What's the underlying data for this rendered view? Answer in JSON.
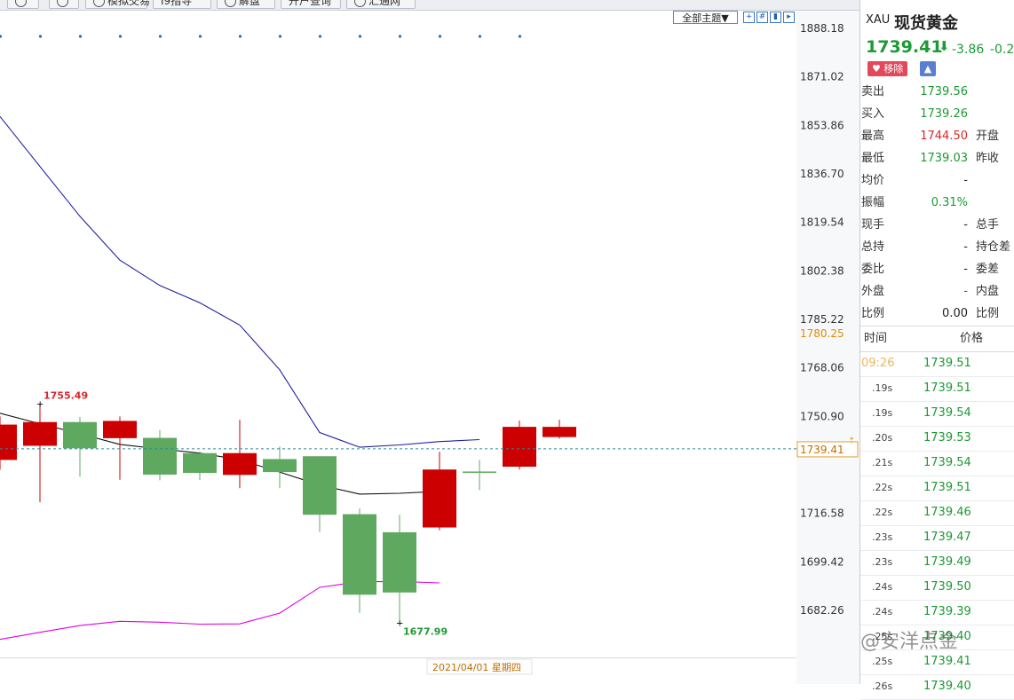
{
  "toolbar": {
    "buttons": [
      {
        "label": "",
        "icon": "search-icon"
      },
      {
        "label": "",
        "icon": "pen-icon"
      },
      {
        "label": "模拟交易",
        "icon": "dollar-icon"
      },
      {
        "label": "I9指导",
        "icon": ""
      },
      {
        "label": "解盘",
        "icon": "chat-icon"
      },
      {
        "label": "开户查询",
        "icon": ""
      },
      {
        "label": "汇通网",
        "icon": "logo-icon"
      }
    ]
  },
  "chart_header": {
    "theme_button": "全部主题▼"
  },
  "chart_data": {
    "type": "candlestick",
    "ylim": [
      1670,
      1895
    ],
    "y_ticks": [
      "1888.18",
      "1871.02",
      "1853.86",
      "1836.70",
      "1819.54",
      "1802.38",
      "1785.22",
      "1768.06",
      "1750.90",
      "1716.58",
      "1699.42",
      "1682.26"
    ],
    "highlight_ticks": [
      {
        "label": "1780.25",
        "value": 1780.25
      }
    ],
    "current_price": {
      "label": "1739.41",
      "value": 1739.41
    },
    "x_label": "2021/04/01 星期四",
    "annotations": [
      {
        "label": "1755.49",
        "candle": 1,
        "value": 1755.49,
        "color": "#d8262b"
      },
      {
        "label": "1677.99",
        "candle": 10,
        "value": 1677.99,
        "color": "#1c9a33"
      }
    ],
    "candles": [
      {
        "open": 1735.5,
        "close": 1748.0,
        "high": 1750.9,
        "low": 1732.0
      },
      {
        "open": 1740.5,
        "close": 1748.9,
        "high": 1755.5,
        "low": 1720.5
      },
      {
        "open": 1748.9,
        "close": 1739.6,
        "high": 1750.7,
        "low": 1729.6
      },
      {
        "open": 1743.2,
        "close": 1749.3,
        "high": 1750.9,
        "low": 1728.5
      },
      {
        "open": 1743.3,
        "close": 1730.3,
        "high": 1746.1,
        "low": 1728.3
      },
      {
        "open": 1737.9,
        "close": 1730.9,
        "high": 1738.5,
        "low": 1728.4
      },
      {
        "open": 1730.2,
        "close": 1737.9,
        "high": 1749.7,
        "low": 1725.5
      },
      {
        "open": 1735.8,
        "close": 1731.2,
        "high": 1740.2,
        "low": 1725.5
      },
      {
        "open": 1736.8,
        "close": 1716.1,
        "high": 1736.8,
        "low": 1710.0
      },
      {
        "open": 1716.3,
        "close": 1687.8,
        "high": 1718.3,
        "low": 1681.4
      },
      {
        "open": 1709.9,
        "close": 1688.6,
        "high": 1716.1,
        "low": 1678.0
      },
      {
        "open": 1711.6,
        "close": 1732.1,
        "high": 1738.4,
        "low": 1710.6
      },
      {
        "open": 1731.4,
        "close": 1731.4,
        "high": 1735.5,
        "low": 1724.8
      },
      {
        "open": 1733.1,
        "close": 1747.2,
        "high": 1749.4,
        "low": 1732.1
      },
      {
        "open": 1743.6,
        "close": 1747.2,
        "high": 1749.7,
        "low": 1743.0
      }
    ],
    "series": [
      {
        "color": "#1f1fa0",
        "values": [
          1857.0,
          1839.3,
          1821.7,
          1806.2,
          1797.2,
          1791.1,
          1783.2,
          1767.4,
          1745.2,
          1740.0,
          1740.8,
          1742.0,
          1742.7
        ]
      },
      {
        "color": "#111111",
        "values": [
          1752.0,
          1748.3,
          1744.8,
          1741.0,
          1739.4,
          1737.9,
          1735.6,
          1731.2,
          1726.6,
          1723.4,
          1723.7,
          1724.4
        ]
      },
      {
        "color": "#e000e0",
        "values": [
          1672.0,
          1674.5,
          1676.9,
          1678.4,
          1678.1,
          1677.4,
          1677.5,
          1681.3,
          1690.4,
          1692.4,
          1692.5,
          1692.0
        ]
      }
    ],
    "blue_dot_row": true
  },
  "quote": {
    "symbol": "XAU",
    "name": "现货黄金",
    "price": "1739.41",
    "arrow": "⬇",
    "change": "-3.86",
    "change_pct": "-0.2",
    "remove_label": "移除",
    "rows": [
      {
        "label": "卖出",
        "value": "1739.56",
        "color": "green",
        "label2": ""
      },
      {
        "label": "买入",
        "value": "1739.26",
        "color": "green",
        "label2": ""
      },
      {
        "label": "最高",
        "value": "1744.50",
        "color": "red",
        "label2": "开盘"
      },
      {
        "label": "最低",
        "value": "1739.03",
        "color": "green",
        "label2": "昨收"
      },
      {
        "label": "均价",
        "value": "-",
        "color": "plain",
        "label2": ""
      },
      {
        "label": "振幅",
        "value": "0.31%",
        "color": "green",
        "label2": ""
      },
      {
        "label": "现手",
        "value": "-",
        "color": "plain",
        "label2": "总手"
      },
      {
        "label": "总持",
        "value": "-",
        "color": "plain",
        "label2": "持仓差"
      },
      {
        "label": "委比",
        "value": "-",
        "color": "plain",
        "label2": "委差"
      },
      {
        "label": "外盘",
        "value": "-",
        "color": "red",
        "label2": "内盘"
      },
      {
        "label": "比例",
        "value": "0.00",
        "color": "plain",
        "label2": "比例"
      }
    ],
    "ticks_header": {
      "time": "时间",
      "price": "价格"
    },
    "ticks": [
      {
        "time": "09:26",
        "price": "1739.51"
      },
      {
        "time": ".19s",
        "price": "1739.51"
      },
      {
        "time": ".19s",
        "price": "1739.54"
      },
      {
        "time": ".20s",
        "price": "1739.53"
      },
      {
        "time": ".21s",
        "price": "1739.54"
      },
      {
        "time": ".22s",
        "price": "1739.51"
      },
      {
        "time": ".22s",
        "price": "1739.46"
      },
      {
        "time": ".23s",
        "price": "1739.47"
      },
      {
        "time": ".23s",
        "price": "1739.49"
      },
      {
        "time": ".24s",
        "price": "1739.50"
      },
      {
        "time": ".24s",
        "price": "1739.39"
      },
      {
        "time": ".25s",
        "price": "1739.40"
      },
      {
        "time": ".25s",
        "price": "1739.41"
      },
      {
        "time": ".26s",
        "price": "1739.40"
      }
    ]
  },
  "watermark": "@安洋点金",
  "colors": {
    "up": "#cc0000",
    "down": "#5fa85f",
    "axis_bg": "#f7f8fa",
    "highlight_tick": "#e08a00"
  }
}
